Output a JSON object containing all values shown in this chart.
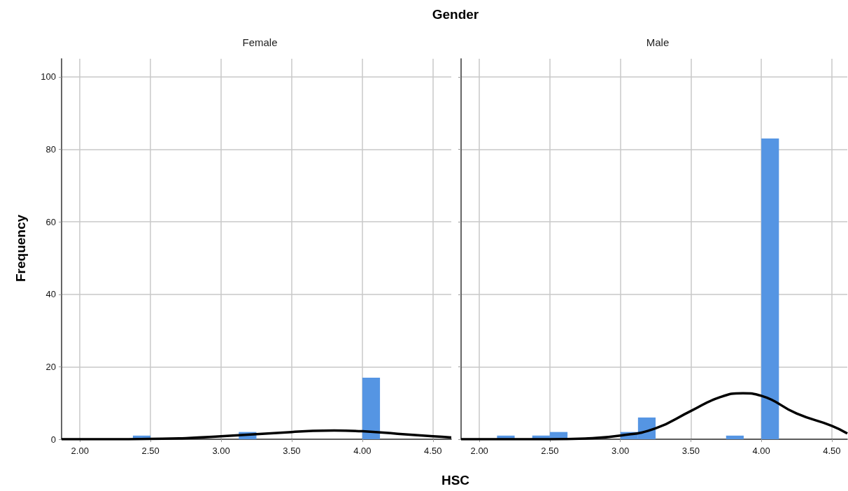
{
  "chart_data": [
    {
      "type": "histogram",
      "title": "Gender",
      "subtitle": "Female",
      "xlabel": "HSC",
      "ylabel": "Frequency",
      "color": "#5595e3",
      "bins": [
        2.125,
        2.25,
        2.375,
        2.5,
        2.625,
        2.75,
        2.875,
        3.0,
        3.125,
        3.25,
        3.375,
        3.5,
        3.625,
        3.75,
        3.875,
        4.0,
        4.125
      ],
      "values": [
        0,
        0,
        1,
        0,
        0,
        0,
        0,
        0,
        2,
        0,
        0,
        0,
        0,
        0,
        0,
        17
      ],
      "series": [
        {
          "type": "line",
          "color": "#000000",
          "x": [
            1.87,
            2.0,
            2.25,
            2.5,
            2.75,
            3.0,
            3.25,
            3.5,
            3.65,
            3.8,
            4.0,
            4.25,
            4.5,
            4.63
          ],
          "values": [
            0,
            0,
            0,
            0.1,
            0.3,
            0.8,
            1.4,
            2.0,
            2.3,
            2.4,
            2.2,
            1.5,
            0.8,
            0.5
          ]
        }
      ],
      "xlim": [
        1.87,
        4.63
      ],
      "xticks": [
        {
          "value": 2,
          "label": "2.00"
        },
        {
          "value": 2.5,
          "label": "2.50"
        },
        {
          "value": 3,
          "label": "3.00"
        },
        {
          "value": 3.5,
          "label": "3.50"
        },
        {
          "value": 4,
          "label": "4.00"
        },
        {
          "value": 4.5,
          "label": "4.50"
        }
      ],
      "ylim": [
        0,
        105
      ],
      "yticks": [
        0,
        20,
        40,
        60,
        80,
        100
      ],
      "grid": true
    },
    {
      "type": "histogram",
      "subtitle": "Male",
      "color": "#5595e3",
      "bins": [
        2.125,
        2.25,
        2.375,
        2.5,
        2.625,
        2.75,
        2.875,
        3.0,
        3.125,
        3.25,
        3.375,
        3.5,
        3.625,
        3.75,
        3.875,
        4.0,
        4.125
      ],
      "values": [
        1,
        0,
        1,
        2,
        0,
        0,
        0,
        2,
        6,
        0,
        0,
        0,
        0,
        1,
        0,
        83
      ],
      "series": [
        {
          "type": "line",
          "color": "#000000",
          "x": [
            1.87,
            2.0,
            2.25,
            2.5,
            2.75,
            3.0,
            3.25,
            3.5,
            3.7,
            3.87,
            4.0,
            4.25,
            4.5,
            4.61
          ],
          "values": [
            0,
            0,
            0,
            0,
            0.2,
            1.0,
            3.0,
            7.8,
            11.5,
            12.7,
            12.0,
            7.1,
            3.7,
            1.6
          ]
        }
      ],
      "xlim": [
        1.87,
        4.61
      ],
      "xticks": [
        {
          "value": 2,
          "label": "2.00"
        },
        {
          "value": 2.5,
          "label": "2.50"
        },
        {
          "value": 3,
          "label": "3.00"
        },
        {
          "value": 3.5,
          "label": "3.50"
        },
        {
          "value": 4,
          "label": "4.00"
        },
        {
          "value": 4.5,
          "label": "4.50"
        }
      ],
      "ylim": [
        0,
        105
      ],
      "yticks": [
        0,
        20,
        40,
        60,
        80,
        100
      ],
      "grid": true,
      "tick_labels": "x"
    }
  ]
}
